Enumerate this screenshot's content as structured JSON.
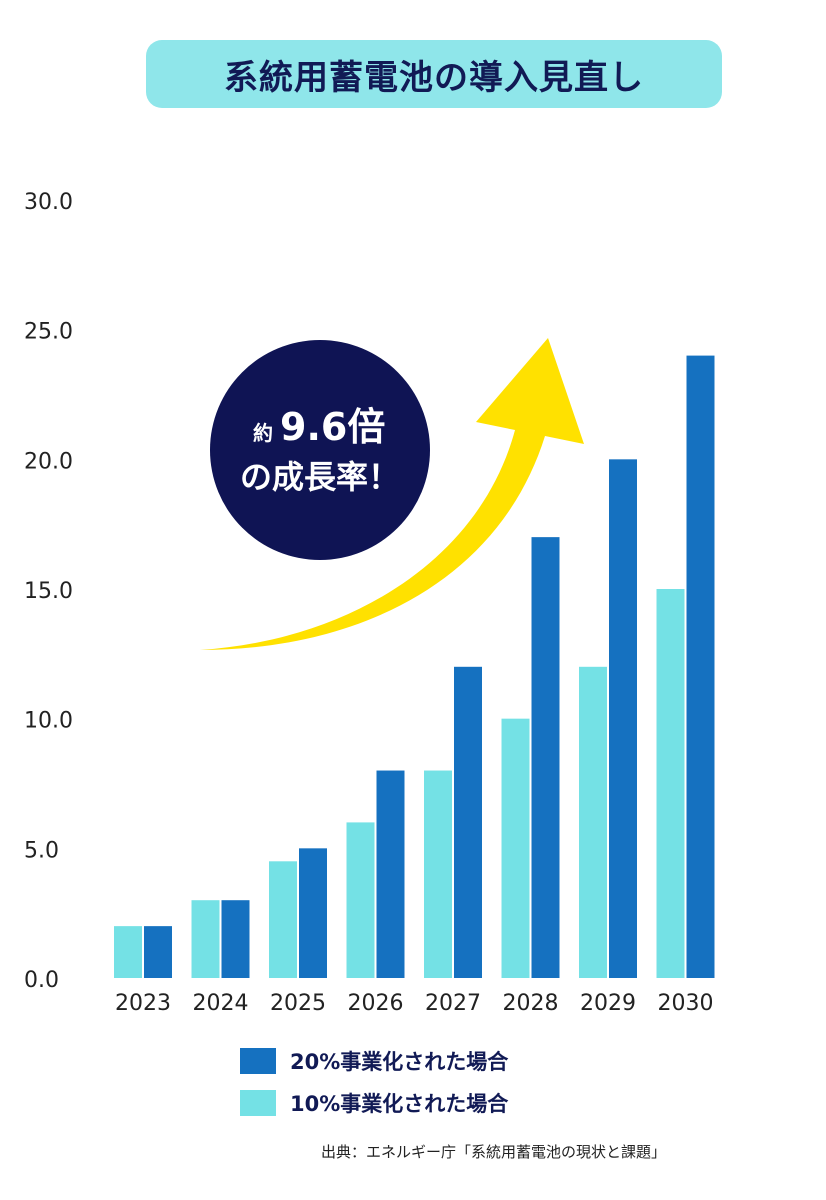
{
  "title": "系統用蓄電池の導入見直し",
  "chart_data": {
    "type": "bar",
    "categories": [
      "2023",
      "2024",
      "2025",
      "2026",
      "2027",
      "2028",
      "2029",
      "2030"
    ],
    "series": [
      {
        "name": "10%事業化された場合",
        "color": "#74e1e5",
        "values": [
          2.0,
          3.0,
          4.5,
          6.0,
          8.0,
          10.0,
          12.0,
          15.0
        ]
      },
      {
        "name": "20%事業化された場合",
        "color": "#1571c0",
        "values": [
          2.0,
          3.0,
          5.0,
          8.0,
          12.0,
          17.0,
          20.0,
          24.0
        ]
      }
    ],
    "yticks": [
      "0.0",
      "5.0",
      "10.0",
      "15.0",
      "20.0",
      "25.0",
      "30.0"
    ],
    "ylim": [
      0,
      30
    ],
    "grid": false,
    "legend_position": "bottom"
  },
  "callout": {
    "prefix": "約",
    "value": "9.6倍",
    "line2": "の成長率！",
    "circle_color": "#0f1454",
    "arrow_color": "#ffe100"
  },
  "legend": [
    {
      "label": "20%事業化された場合",
      "color": "#1571c0"
    },
    {
      "label": "10%事業化された場合",
      "color": "#74e1e5"
    }
  ],
  "source": "出典：エネルギー庁「系統用蓄電池の現状と課題」"
}
